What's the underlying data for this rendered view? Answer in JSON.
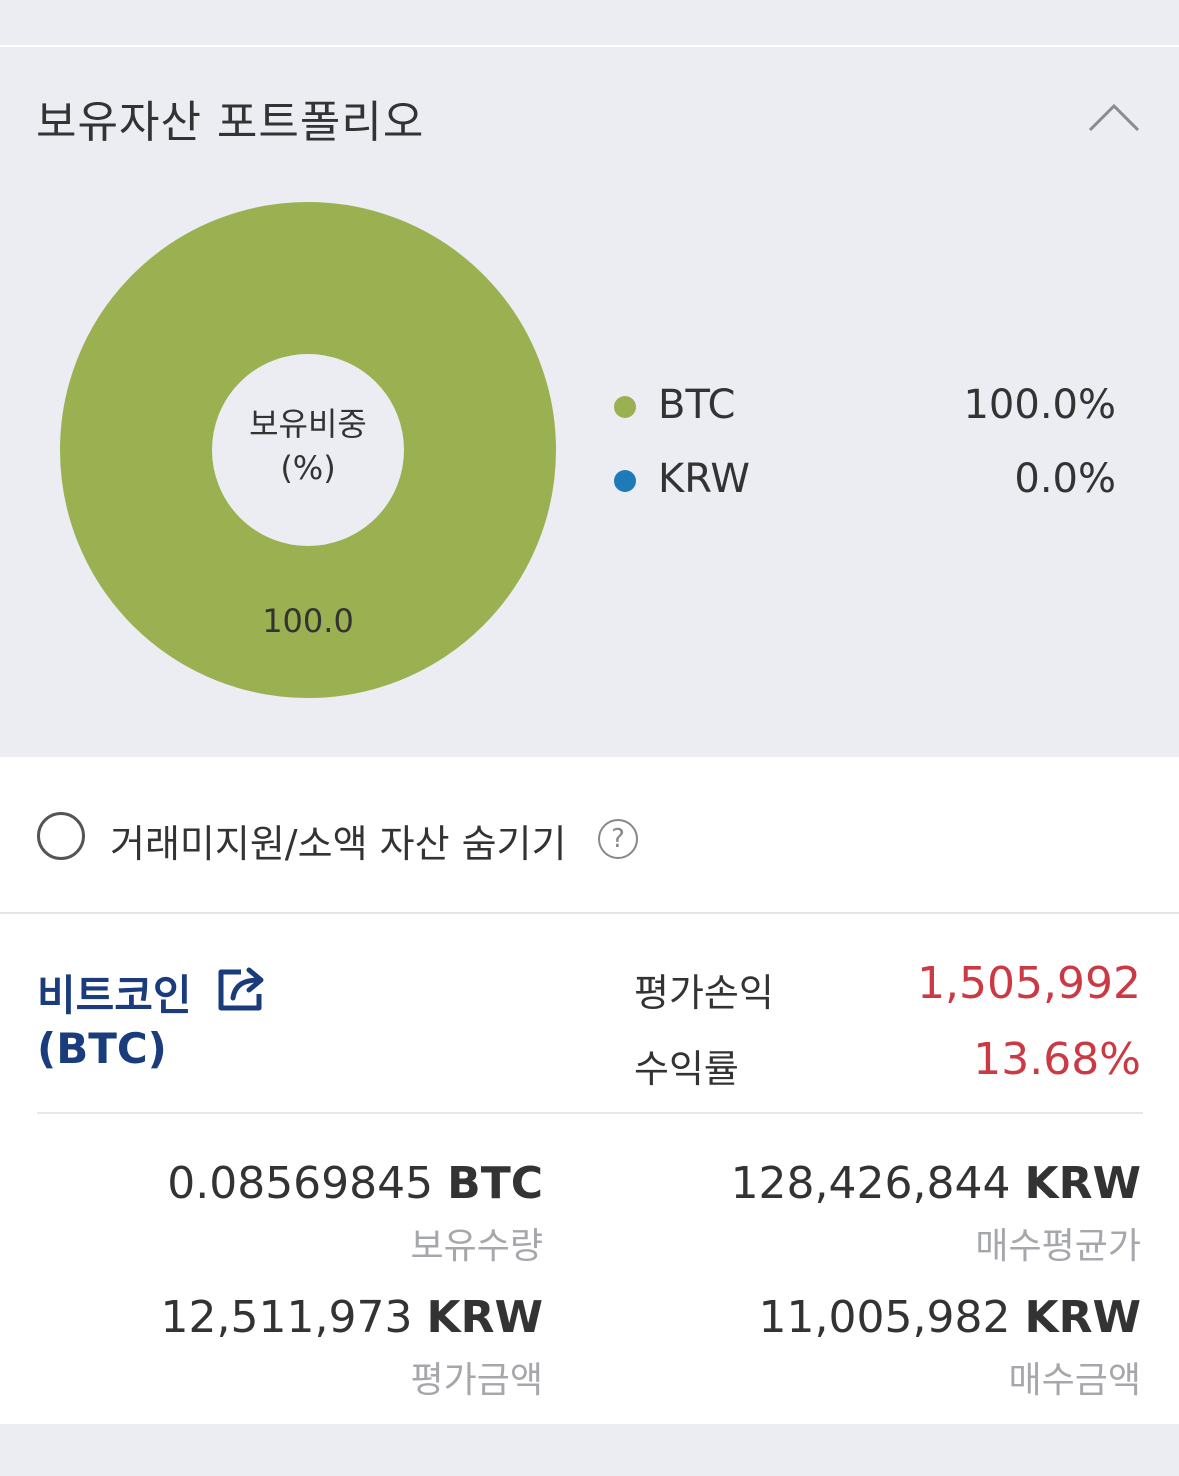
{
  "portfolio": {
    "title": "보유자산 포트폴리오",
    "center_label_line1": "보유비중",
    "center_label_line2": "(%)",
    "slice_value_label": "100.0",
    "legend": [
      {
        "name": "BTC",
        "percent": "100.0%",
        "color": "#9ab051"
      },
      {
        "name": "KRW",
        "percent": "0.0%",
        "color": "#1f7ab8"
      }
    ]
  },
  "chart_data": {
    "type": "pie",
    "title": "보유비중 (%)",
    "categories": [
      "BTC",
      "KRW"
    ],
    "values": [
      100.0,
      0.0
    ],
    "colors": [
      "#9ab051",
      "#1f7ab8"
    ],
    "legend_position": "right"
  },
  "filter": {
    "hide_label": "거래미지원/소액 자산 숨기기",
    "help_glyph": "?"
  },
  "asset": {
    "name": "비트코인",
    "ticker": "(BTC)",
    "profit_label": "평가손익",
    "profit_value": "1,505,992",
    "return_label": "수익률",
    "return_value": "13.68%",
    "holding_qty": "0.08569845",
    "holding_unit": "BTC",
    "holding_label": "보유수량",
    "avg_price": "128,426,844",
    "avg_price_unit": "KRW",
    "avg_price_label": "매수평균가",
    "eval_amount": "12,511,973",
    "eval_amount_unit": "KRW",
    "eval_amount_label": "평가금액",
    "buy_amount": "11,005,982",
    "buy_amount_unit": "KRW",
    "buy_amount_label": "매수금액"
  }
}
